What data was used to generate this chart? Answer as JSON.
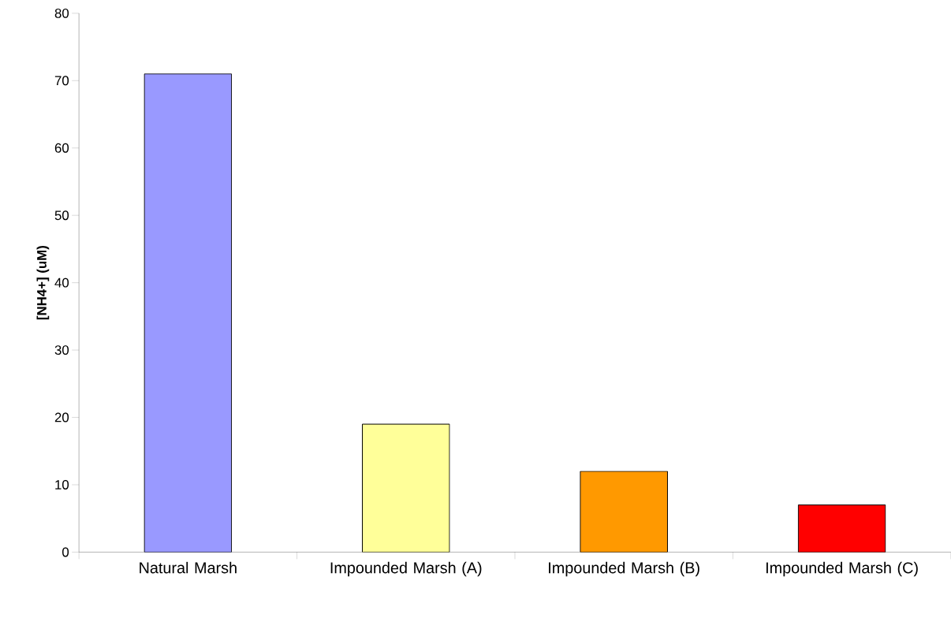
{
  "chart_data": {
    "type": "bar",
    "ylabel": "[NH4+] (uM)",
    "categories": [
      "Natural Marsh",
      "Impounded Marsh (A)",
      "Impounded Marsh (B)",
      "Impounded Marsh (C)"
    ],
    "values": [
      71,
      19,
      12,
      7
    ],
    "colors": [
      "#9999ff",
      "#ffff99",
      "#ff9900",
      "#ff0000"
    ],
    "ylim": [
      0,
      80
    ],
    "yticks": [
      0,
      10,
      20,
      30,
      40,
      50,
      60,
      70,
      80
    ]
  }
}
